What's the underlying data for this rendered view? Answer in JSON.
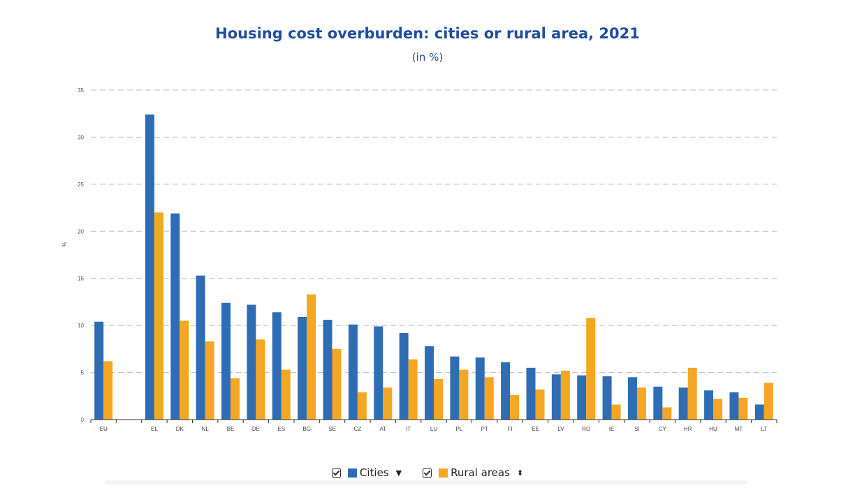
{
  "chart_data": {
    "type": "bar",
    "title": "Housing cost overburden: cities or rural area, 2021",
    "subtitle": "(in %)",
    "ylabel": "%",
    "xlabel": "",
    "ylim": [
      0,
      35
    ],
    "yticks": [
      0,
      5,
      10,
      15,
      20,
      25,
      30,
      35
    ],
    "grid": true,
    "legend_position": "bottom",
    "categories": [
      "EU",
      "",
      "EL",
      "DK",
      "NL",
      "BE",
      "DE",
      "ES",
      "BG",
      "SE",
      "CZ",
      "AT",
      "IT",
      "LU",
      "PL",
      "PT",
      "FI",
      "EE",
      "LV",
      "RO",
      "IE",
      "SI",
      "CY",
      "HR",
      "HU",
      "MT",
      "LT"
    ],
    "series": [
      {
        "name": "Cities",
        "color": "#2e6db4",
        "values": [
          10.4,
          null,
          32.4,
          21.9,
          15.3,
          12.4,
          12.2,
          11.4,
          10.9,
          10.6,
          10.1,
          9.9,
          9.2,
          7.8,
          6.7,
          6.6,
          6.1,
          5.5,
          4.8,
          4.7,
          4.6,
          4.5,
          3.5,
          3.4,
          3.1,
          2.9,
          1.6
        ]
      },
      {
        "name": "Rural areas",
        "color": "#f5a623",
        "values": [
          6.2,
          null,
          22.0,
          10.5,
          8.3,
          4.4,
          8.5,
          5.3,
          13.3,
          7.5,
          2.9,
          3.4,
          6.4,
          4.3,
          5.3,
          4.5,
          2.6,
          3.2,
          5.2,
          10.8,
          1.6,
          3.4,
          1.3,
          5.5,
          2.2,
          2.3,
          3.9
        ]
      }
    ]
  },
  "legend": {
    "items": [
      {
        "label": "Cities",
        "color": "#2e6db4",
        "checked": true,
        "sort_icon": "sort-desc-icon"
      },
      {
        "label": "Rural areas",
        "color": "#f5a623",
        "checked": true,
        "sort_icon": "sort-both-icon"
      }
    ]
  }
}
